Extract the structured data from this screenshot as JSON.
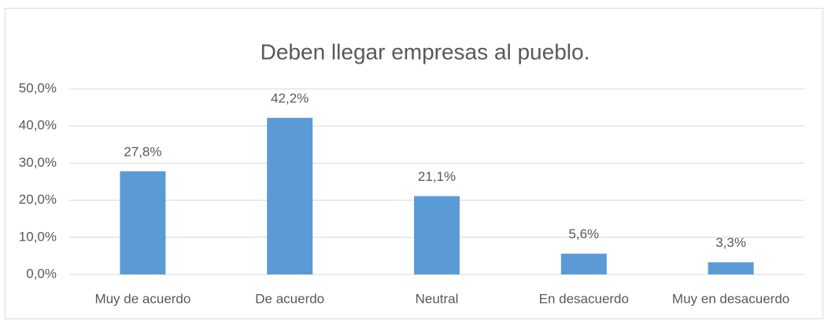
{
  "chart_data": {
    "type": "bar",
    "title": "Deben llegar empresas al pueblo.",
    "categories": [
      "Muy de acuerdo",
      "De acuerdo",
      "Neutral",
      "En desacuerdo",
      "Muy en desacuerdo"
    ],
    "values": [
      27.8,
      42.2,
      21.1,
      5.6,
      3.3
    ],
    "value_labels": [
      "27,8%",
      "42,2%",
      "21,1%",
      "5,6%",
      "3,3%"
    ],
    "color": "#5b9bd5",
    "ylim": [
      0,
      50
    ],
    "yticks": [
      {
        "value": 0,
        "label": "0,0%"
      },
      {
        "value": 10,
        "label": "10,0%"
      },
      {
        "value": 20,
        "label": "20,0%"
      },
      {
        "value": 30,
        "label": "30,0%"
      },
      {
        "value": 40,
        "label": "40,0%"
      },
      {
        "value": 50,
        "label": "50,0%"
      }
    ],
    "grid": true
  }
}
